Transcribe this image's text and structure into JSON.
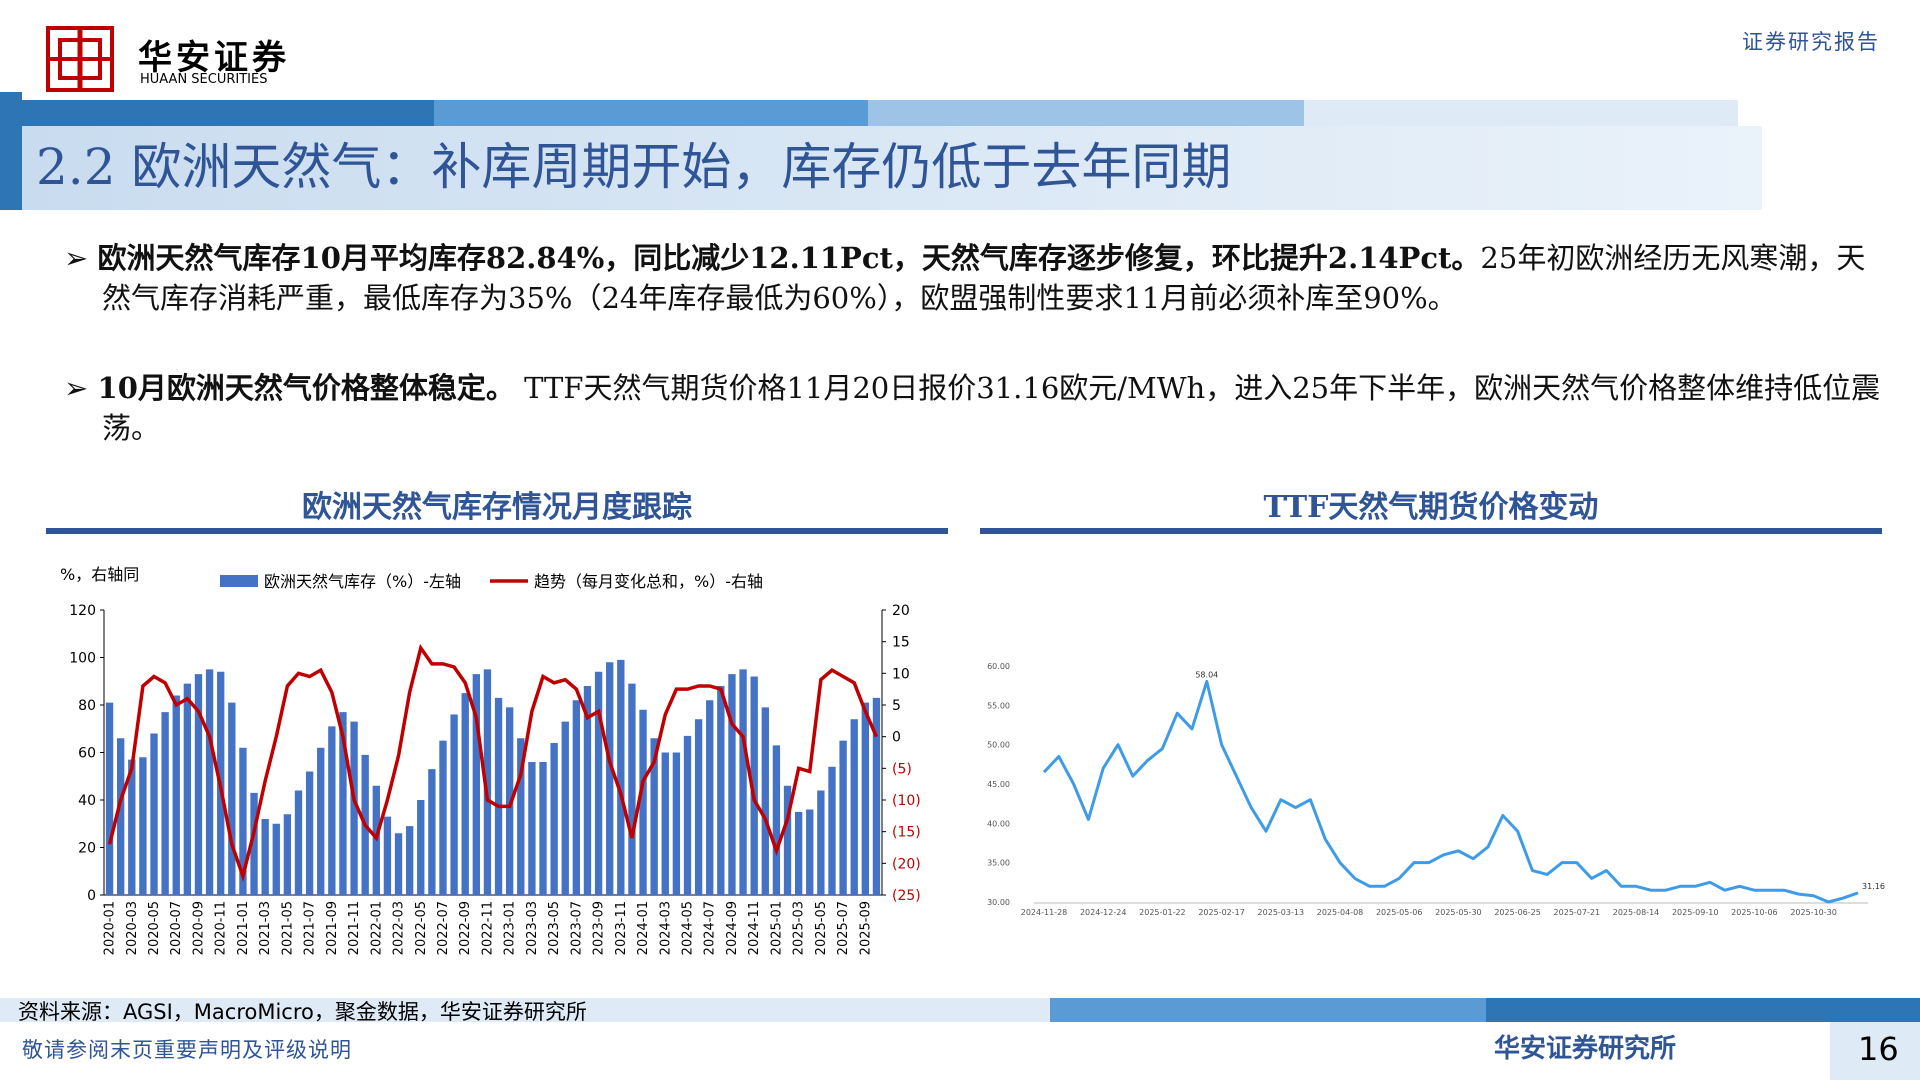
{
  "header": {
    "brand": "华安证券",
    "brand_en": "HUAAN SECURITIES",
    "report_type": "证券研究报告"
  },
  "title": "2.2 欧洲天然气：补库周期开始，库存仍低于去年同期",
  "bullets": [
    {
      "bold": "欧洲天然气库存10月平均库存82.84%，同比减少12.11Pct，天然气库存逐步修复，环比提升2.14Pct。",
      "text": "25年初欧洲经历无风寒潮，天然气库存消耗严重，最低库存为35%（24年库存最低为60%），欧盟强制性要求11月前必须补库至90%。"
    },
    {
      "bold": "10月欧洲天然气价格整体稳定。",
      "text": " TTF天然气期货价格11月20日报价31.16欧元/MWh，进入25年下半年，欧洲天然气价格整体维持低位震荡。"
    }
  ],
  "charts": [
    {
      "type": "bar",
      "title": "欧洲天然气库存情况月度跟踪",
      "y_label": "%，右轴同",
      "categories": [
        "2020-01",
        null,
        "2020-03",
        null,
        "2020-05",
        null,
        "2020-07",
        null,
        "2020-09",
        null,
        "2020-11",
        null,
        "2021-01",
        null,
        "2021-03",
        null,
        "2021-05",
        null,
        "2021-07",
        null,
        "2021-09",
        null,
        "2021-11",
        null,
        "2022-01",
        null,
        "2022-03",
        null,
        "2022-05",
        null,
        "2022-07",
        null,
        "2022-09",
        null,
        "2022-11",
        null,
        "2023-01",
        null,
        "2023-03",
        null,
        "2023-05",
        null,
        "2023-07",
        null,
        "2023-09",
        null,
        "2023-11",
        null,
        "2024-01",
        null,
        "2024-03",
        null,
        "2024-05",
        null,
        "2024-07",
        null,
        "2024-09",
        null,
        "2024-11",
        null,
        "2025-01",
        null,
        "2025-03",
        null,
        "2025-05",
        null,
        "2025-07",
        null,
        "2025-09",
        null
      ],
      "series": [
        {
          "name": "欧洲天然气库存（%）-左轴",
          "color": "#4472c4",
          "values": [
            81,
            66,
            57,
            58,
            68,
            77,
            84,
            89,
            93,
            95,
            94,
            81,
            62,
            43,
            32,
            30,
            34,
            44,
            52,
            62,
            71,
            77,
            73,
            59,
            46,
            33,
            26,
            29,
            40,
            53,
            65,
            76,
            85,
            93,
            95,
            83,
            79,
            66,
            56,
            56,
            64,
            73,
            82,
            88,
            94,
            98,
            99,
            89,
            78,
            66,
            60,
            60,
            67,
            74,
            82,
            88,
            93,
            95,
            92,
            79,
            63,
            46,
            35,
            36,
            44,
            54,
            65,
            74,
            81,
            83
          ]
        },
        {
          "name": "趋势（每月变化总和，%）-右轴",
          "color": "#c00000",
          "axis": "y2",
          "values": [
            -17,
            -10,
            -5,
            8,
            9.5,
            8.5,
            5,
            6,
            4,
            0,
            -8,
            -17,
            -22,
            -15,
            -7,
            0,
            8,
            10,
            9.5,
            10.5,
            7,
            0,
            -10,
            -14,
            -16,
            -10,
            -3,
            7,
            14,
            11.5,
            11.5,
            11,
            8.5,
            3,
            -10,
            -11,
            -11,
            -6,
            4,
            9.5,
            8.5,
            9,
            7.5,
            3,
            4,
            -4,
            -9,
            -16,
            -7,
            -4,
            3.5,
            7.5,
            7.5,
            8,
            8,
            7.5,
            2,
            0,
            -10,
            -13,
            -18,
            -13,
            -5,
            -5.5,
            9,
            10.5,
            9.5,
            8.5,
            4,
            0
          ]
        }
      ],
      "ylim": [
        0,
        120
      ],
      "yticks": [
        0,
        20,
        40,
        60,
        80,
        100,
        120
      ],
      "y2lim": [
        -25,
        20
      ],
      "y2ticks": [
        {
          "value": -25,
          "label": "(25)"
        },
        {
          "value": -20,
          "label": "(20)"
        },
        {
          "value": -15,
          "label": "(15)"
        },
        {
          "value": -10,
          "label": "(10)"
        },
        {
          "value": -5,
          "label": "(5)"
        },
        0,
        5,
        10,
        15,
        20
      ]
    },
    {
      "type": "line",
      "title": "TTF天然气期货价格变动",
      "color": "#3d9be9",
      "categories": [
        "2024-11-28",
        null,
        null,
        null,
        "2024-12-24",
        null,
        null,
        null,
        "2025-01-22",
        null,
        null,
        null,
        "2025-02-17",
        null,
        null,
        null,
        "2025-03-13",
        null,
        null,
        null,
        "2025-04-08",
        null,
        null,
        null,
        "2025-05-06",
        null,
        null,
        null,
        "2025-05-30",
        null,
        null,
        null,
        "2025-06-25",
        null,
        null,
        null,
        "2025-07-21",
        null,
        null,
        null,
        "2025-08-14",
        null,
        null,
        null,
        "2025-09-10",
        null,
        null,
        null,
        "2025-10-06",
        null,
        null,
        null,
        "2025-10-30",
        null,
        null,
        null
      ],
      "values": [
        46.5,
        48.5,
        45,
        40.5,
        47,
        50,
        46,
        48,
        49.5,
        54,
        52,
        58.04,
        50,
        46,
        42,
        39,
        43,
        42,
        43,
        38,
        35,
        33,
        32,
        32,
        33,
        35,
        35,
        36,
        36.5,
        35.5,
        37,
        41,
        39,
        34,
        33.5,
        35,
        35,
        33,
        34,
        32,
        32,
        31.5,
        31.5,
        32,
        32,
        32.5,
        31.5,
        32,
        31.5,
        31.5,
        31.5,
        31,
        30.8,
        30,
        30.5,
        31.16
      ],
      "value_labels": [
        null,
        null,
        null,
        null,
        null,
        null,
        null,
        null,
        null,
        null,
        null,
        "58.04",
        null,
        null,
        null,
        null,
        null,
        null,
        null,
        null,
        null,
        null,
        null,
        null,
        null,
        null,
        null,
        null,
        null,
        null,
        null,
        null,
        null,
        null,
        null,
        null,
        null,
        null,
        null,
        null,
        null,
        null,
        null,
        null,
        null,
        null,
        null,
        null,
        null,
        null,
        null,
        null,
        null,
        null,
        null,
        "31.16"
      ],
      "ylim": [
        30,
        60
      ],
      "yticks": [
        {
          "value": 30,
          "label": "30.00"
        },
        {
          "value": 35,
          "label": "35.00"
        },
        {
          "value": 40,
          "label": "40.00"
        },
        {
          "value": 45,
          "label": "45.00"
        },
        {
          "value": 50,
          "label": "50.00"
        },
        {
          "value": 55,
          "label": "55.00"
        },
        {
          "value": 60,
          "label": "60.00"
        }
      ]
    }
  ],
  "footer": {
    "source": "资料来源：AGSI，MacroMicro，聚金数据，华安证券研究所",
    "disclaimer": "敬请参阅末页重要声明及评级说明",
    "org": "华安证券研究所",
    "page": "16"
  }
}
